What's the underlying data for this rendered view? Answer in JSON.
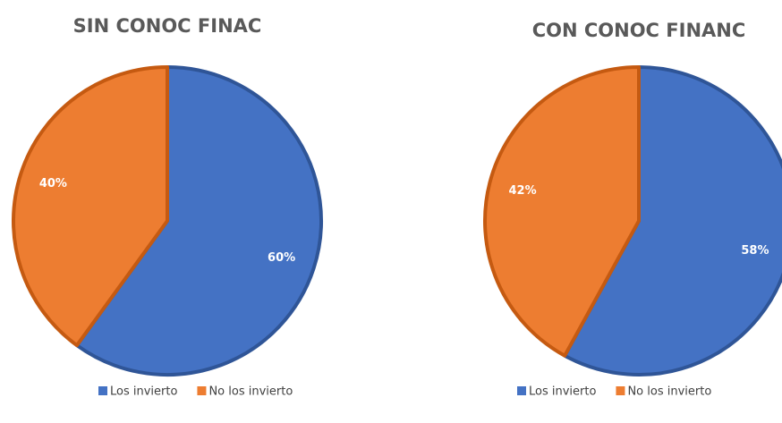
{
  "chart_data": [
    {
      "type": "pie",
      "title": "SIN CONOC FINAC",
      "categories": [
        "Los invierto",
        "No los invierto"
      ],
      "values": [
        60,
        40
      ],
      "value_labels": [
        "60%",
        "40%"
      ],
      "colors": [
        "#4472c4",
        "#ed7d31"
      ],
      "legend": "bottom"
    },
    {
      "type": "pie",
      "title": "CON CONOC FINANC",
      "categories": [
        "Los invierto",
        "No los invierto"
      ],
      "values": [
        58,
        42
      ],
      "value_labels": [
        "58%",
        "42%"
      ],
      "colors": [
        "#4472c4",
        "#ed7d31"
      ],
      "legend": "bottom"
    }
  ]
}
